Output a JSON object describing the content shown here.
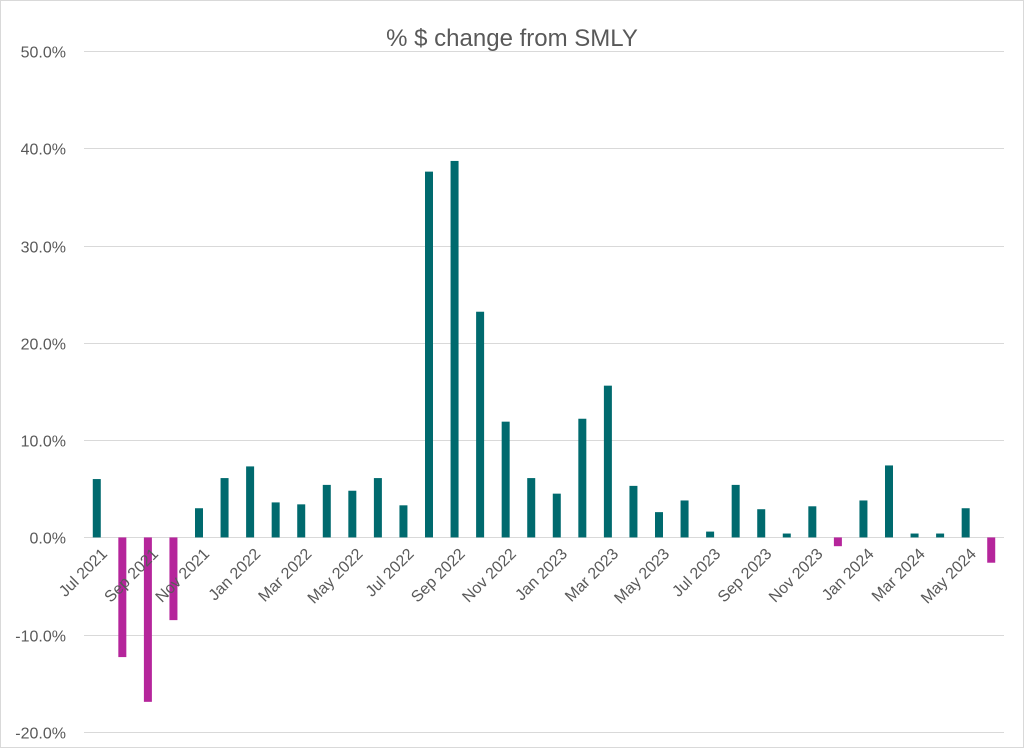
{
  "chart_data": {
    "type": "bar",
    "title": "% $ change from SMLY",
    "xlabel": "",
    "ylabel": "",
    "ylim": [
      -20,
      50
    ],
    "ytick_values": [
      -20,
      -10,
      0,
      10,
      20,
      30,
      40,
      50
    ],
    "ytick_labels": [
      "-20.0%",
      "-10.0%",
      "0.0%",
      "10.0%",
      "20.0%",
      "30.0%",
      "40.0%",
      "50.0%"
    ],
    "grid": true,
    "legend": "none",
    "categories": [
      "Jul 2021",
      "Aug 2021",
      "Sep 2021",
      "Oct 2021",
      "Nov 2021",
      "Dec 2021",
      "Jan 2022",
      "Feb 2022",
      "Mar 2022",
      "Apr 2022",
      "May 2022",
      "Jun 2022",
      "Jul 2022",
      "Aug 2022",
      "Sep 2022",
      "Oct 2022",
      "Nov 2022",
      "Dec 2022",
      "Jan 2023",
      "Feb 2023",
      "Mar 2023",
      "Apr 2023",
      "May 2023",
      "Jun 2023",
      "Jul 2023",
      "Aug 2023",
      "Sep 2023",
      "Oct 2023",
      "Nov 2023",
      "Dec 2023",
      "Jan 2024",
      "Feb 2024",
      "Mar 2024",
      "Apr 2024",
      "May 2024",
      "Jun 2024"
    ],
    "x_tick_labels": [
      "Jul 2021",
      "Sep 2021",
      "Nov 2021",
      "Jan 2022",
      "Mar 2022",
      "May 2022",
      "Jul 2022",
      "Sep 2022",
      "Nov 2022",
      "Jan 2023",
      "Mar 2023",
      "May 2023",
      "Jul 2023",
      "Sep 2023",
      "Nov 2023",
      "Jan 2024",
      "Mar 2024",
      "May 2024"
    ],
    "values": [
      6.0,
      -12.3,
      -16.9,
      -8.5,
      3.0,
      6.1,
      7.3,
      3.6,
      3.4,
      5.4,
      4.8,
      6.1,
      3.3,
      37.6,
      38.7,
      23.2,
      11.9,
      6.1,
      4.5,
      12.2,
      15.6,
      5.3,
      2.6,
      3.8,
      0.6,
      5.4,
      2.9,
      0.4,
      3.2,
      -0.9,
      3.8,
      7.4,
      0.4,
      0.4,
      3.0,
      -2.6
    ],
    "positive_color": "#006a6e",
    "negative_color": "#b5259b"
  }
}
